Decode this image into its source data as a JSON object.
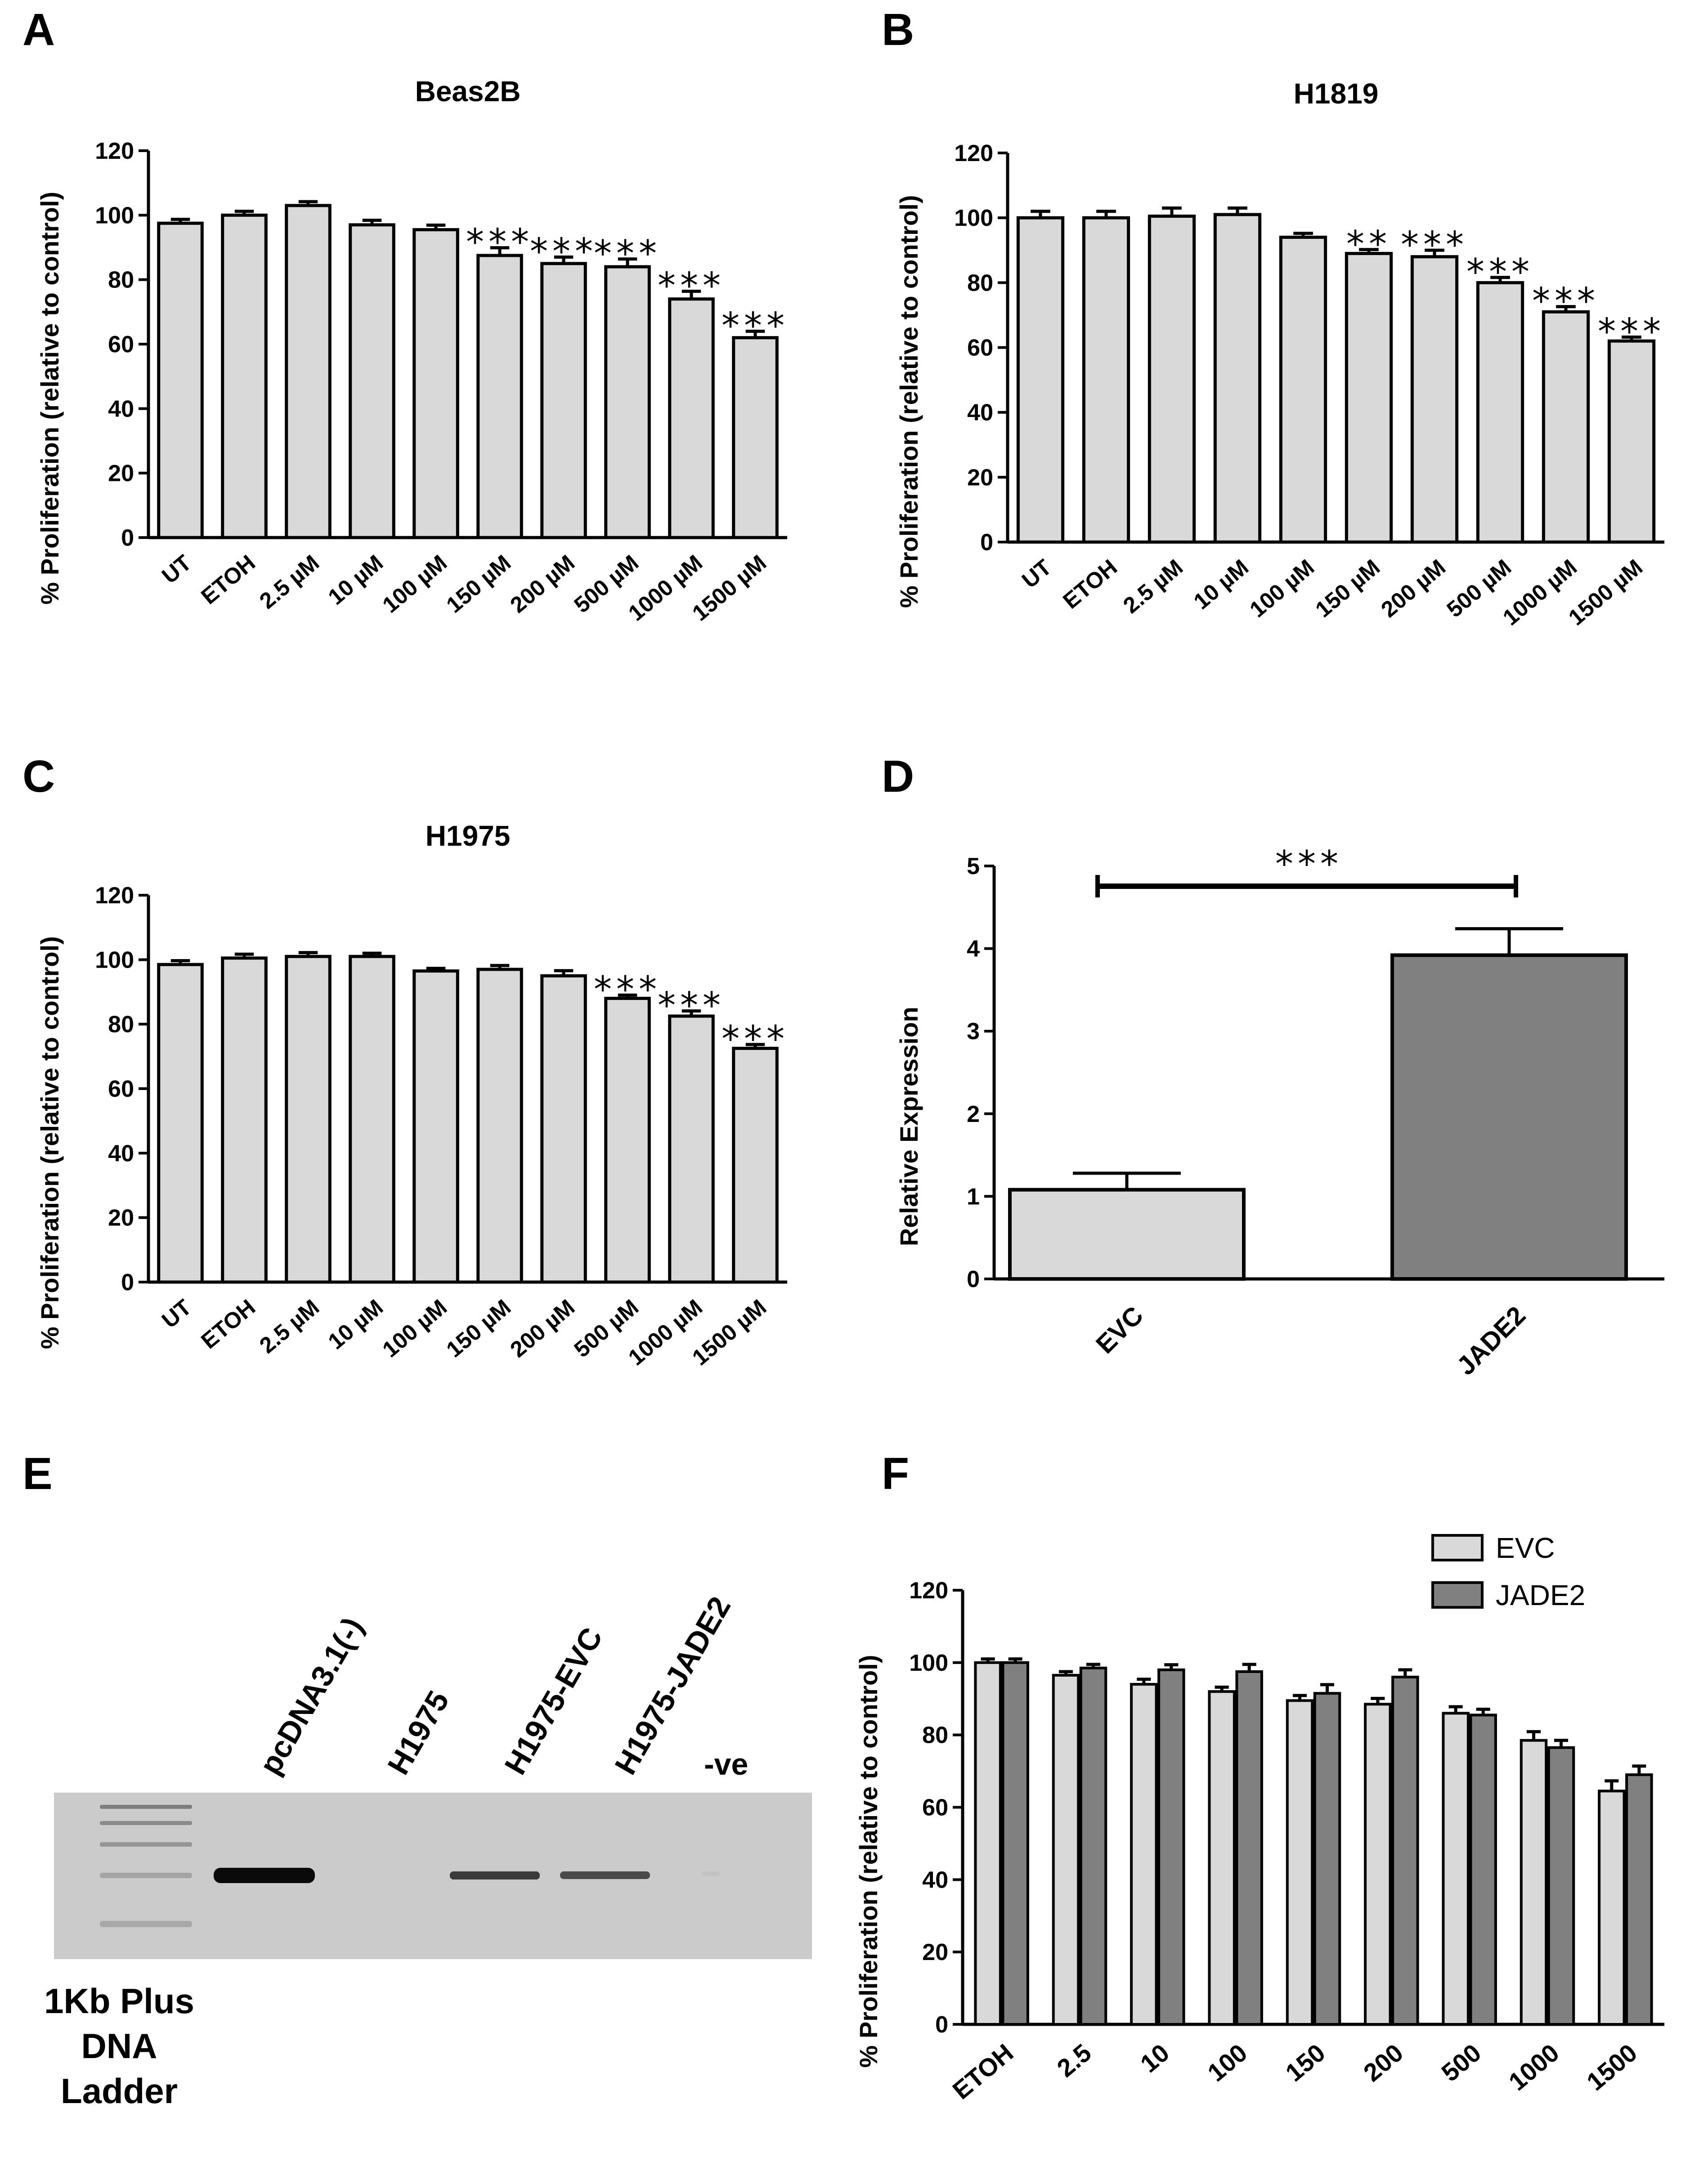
{
  "chart_data": [
    {
      "panel": "A",
      "type": "bar",
      "title": "Beas2B",
      "ylabel": "% Proliferation (relative to control)",
      "xlabel": "",
      "ylim": [
        0,
        120
      ],
      "yticks": [
        0,
        20,
        40,
        60,
        80,
        100,
        120
      ],
      "categories": [
        "UT",
        "ETOH",
        "2.5 µM",
        "10 µM",
        "100 µM",
        "150 µM",
        "200 µM",
        "500 µM",
        "1000 µM",
        "1500 µM"
      ],
      "values": [
        97.5,
        100,
        103,
        97,
        95.5,
        87.5,
        85,
        84,
        74,
        62
      ],
      "errors": [
        1.2,
        1.2,
        1.2,
        1.4,
        1.4,
        2.4,
        2.0,
        2.4,
        2.4,
        2.0
      ],
      "significance": [
        "",
        "",
        "",
        "",
        "",
        "***",
        "***",
        "***",
        "***",
        "***"
      ]
    },
    {
      "panel": "B",
      "type": "bar",
      "title": "H1819",
      "ylabel": "% Proliferation (relative to control)",
      "xlabel": "",
      "ylim": [
        0,
        120
      ],
      "yticks": [
        0,
        20,
        40,
        60,
        80,
        100,
        120
      ],
      "categories": [
        "UT",
        "ETOH",
        "2.5 µM",
        "10 µM",
        "100 µM",
        "150 µM",
        "200 µM",
        "500 µM",
        "1000 µM",
        "1500 µM"
      ],
      "values": [
        100,
        100,
        100.5,
        101,
        94,
        89,
        88,
        80,
        71,
        62
      ],
      "errors": [
        2.0,
        2.0,
        2.5,
        2.0,
        1.2,
        1.2,
        2.0,
        1.6,
        1.6,
        1.2
      ],
      "significance": [
        "",
        "",
        "",
        "",
        "",
        "**",
        "***",
        "***",
        "***",
        "***"
      ]
    },
    {
      "panel": "C",
      "type": "bar",
      "title": "H1975",
      "ylabel": "% Proliferation (relative to control)",
      "xlabel": "",
      "ylim": [
        0,
        120
      ],
      "yticks": [
        0,
        20,
        40,
        60,
        80,
        100,
        120
      ],
      "categories": [
        "UT",
        "ETOH",
        "2.5 µM",
        "10 µM",
        "100 µM",
        "150 µM",
        "200 µM",
        "500 µM",
        "1000 µM",
        "1500 µM"
      ],
      "values": [
        98.5,
        100.5,
        101,
        101,
        96.5,
        97,
        95,
        88,
        82.5,
        72.5
      ],
      "errors": [
        1.2,
        1.2,
        1.2,
        1.0,
        0.8,
        1.2,
        1.6,
        1.0,
        1.6,
        1.2
      ],
      "significance": [
        "",
        "",
        "",
        "",
        "",
        "",
        "",
        "***",
        "***",
        "***"
      ]
    },
    {
      "panel": "D",
      "type": "bar",
      "title": "",
      "ylabel": "Relative Expression",
      "xlabel": "",
      "ylim": [
        0,
        5
      ],
      "yticks": [
        0,
        1,
        2,
        3,
        4,
        5
      ],
      "categories": [
        "EVC",
        "JADE2"
      ],
      "values": [
        1.08,
        3.92
      ],
      "errors": [
        0.2,
        0.32
      ],
      "colors": [
        "#d9d9d9",
        "#808080"
      ],
      "comparison": {
        "from": "EVC",
        "to": "JADE2",
        "label": "***"
      }
    },
    {
      "panel": "F",
      "type": "bar",
      "title": "",
      "ylabel": "% Proliferation (relative to control)",
      "xlabel": "",
      "ylim": [
        0,
        120
      ],
      "yticks": [
        0,
        20,
        40,
        60,
        80,
        100,
        120
      ],
      "categories": [
        "ETOH",
        "2.5",
        "10",
        "100",
        "150",
        "200",
        "500",
        "1000",
        "1500"
      ],
      "series": [
        {
          "name": "EVC",
          "color": "#d9d9d9",
          "values": [
            100,
            96.5,
            94,
            92,
            89.5,
            88.5,
            86,
            78.5,
            64.5
          ],
          "errors": [
            1.0,
            1.0,
            1.4,
            1.2,
            1.4,
            1.6,
            1.8,
            2.4,
            2.8
          ]
        },
        {
          "name": "JADE2",
          "color": "#808080",
          "values": [
            100,
            98.5,
            98,
            97.5,
            91.5,
            96,
            85.5,
            76.5,
            69
          ],
          "errors": [
            1.0,
            1.0,
            1.4,
            2.0,
            2.4,
            2.0,
            1.6,
            2.0,
            2.4
          ]
        }
      ],
      "legend": "top-right"
    }
  ],
  "panel_letters": {
    "A": "A",
    "B": "B",
    "C": "C",
    "D": "D",
    "E": "E",
    "F": "F"
  },
  "gel": {
    "lanes": [
      "pcDNA3.1(-)",
      "H1975",
      "H1975-EVC",
      "H1975-JADE2",
      "-ve"
    ],
    "ladder_label": [
      "1Kb Plus",
      "DNA",
      "Ladder"
    ],
    "band_intensity": [
      1.0,
      0.0,
      0.7,
      0.6,
      0.05
    ]
  }
}
